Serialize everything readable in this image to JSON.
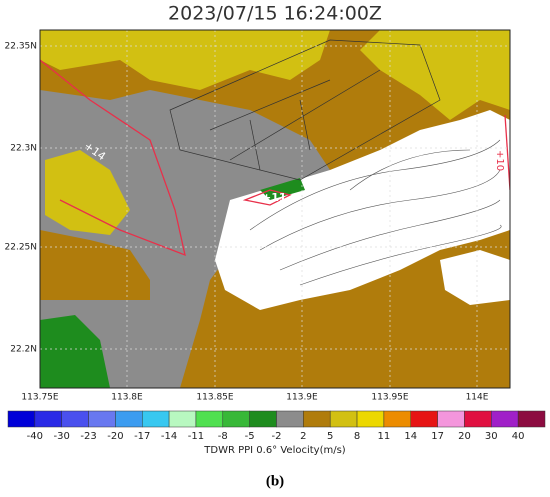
{
  "title": "2023/07/15 16:24:00Z",
  "x_tick_labels": [
    "113.75E",
    "113.8E",
    "113.85E",
    "113.9E",
    "113.95E",
    "114E"
  ],
  "y_tick_labels": [
    "22.35N",
    "22.3N",
    "22.25N",
    "22.2N"
  ],
  "annotations": [
    "+14",
    "+11",
    "+10"
  ],
  "colorbar": {
    "colors": [
      "#0000d8",
      "#2a2ae6",
      "#4a50ee",
      "#6878f0",
      "#3c9cf0",
      "#38c8f0",
      "#b8f8c0",
      "#50e050",
      "#38b838",
      "#1e8c1e",
      "#8c8c8c",
      "#b07c0c",
      "#d2c012",
      "#ecd800",
      "#ec8c00",
      "#e61414",
      "#f496dc",
      "#e01040",
      "#a020c8",
      "#8c0c40"
    ],
    "labels": [
      -40,
      -30,
      -23,
      -20,
      -17,
      -14,
      -11,
      -8,
      -5,
      -2,
      2,
      5,
      8,
      11,
      14,
      17,
      20,
      30,
      40
    ],
    "title": "TDWR PPI 0.6° Velocity(m/s)"
  },
  "caption": "(b)"
}
